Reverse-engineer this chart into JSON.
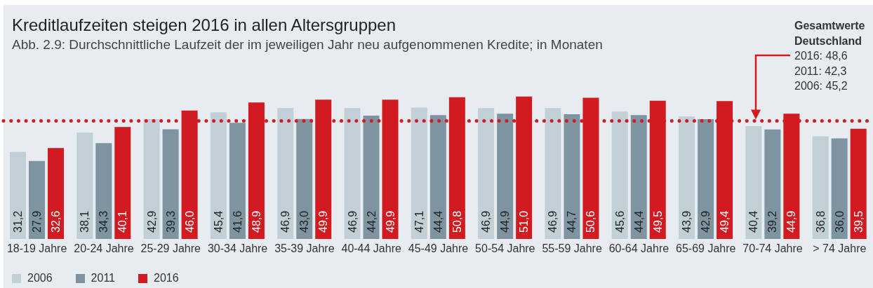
{
  "chart_data": {
    "type": "bar",
    "title": "Kreditlaufzeiten steigen 2016 in allen Altersgruppen",
    "subtitle": "Abb. 2.9: Durchschnittliche Laufzeit der im jeweiligen Jahr neu aufgenommenen Kredite; in Monaten",
    "categories": [
      "18-19 Jahre",
      "20-24 Jahre",
      "25-29 Jahre",
      "30-34 Jahre",
      "35-39 Jahre",
      "40-44 Jahre",
      "45-49 Jahre",
      "50-54 Jahre",
      "55-59 Jahre",
      "60-64 Jahre",
      "65-69 Jahre",
      "70-74 Jahre",
      "> 74 Jahre"
    ],
    "series": [
      {
        "name": "2006",
        "color": "#c1cfd6",
        "values": [
          31.2,
          38.1,
          42.9,
          45.4,
          46.9,
          46.9,
          47.1,
          46.9,
          46.9,
          45.6,
          43.9,
          40.4,
          36.8
        ],
        "value_labels": [
          "31,2",
          "38,1",
          "42,9",
          "45,4",
          "46,9",
          "46,9",
          "47,1",
          "46,9",
          "46,9",
          "45,6",
          "43,9",
          "40,4",
          "36,8"
        ]
      },
      {
        "name": "2011",
        "color": "#7e95a1",
        "values": [
          27.9,
          34.3,
          39.3,
          41.6,
          43.0,
          44.2,
          44.4,
          44.9,
          44.7,
          44.4,
          42.9,
          39.2,
          36.0
        ],
        "value_labels": [
          "27,9",
          "34,3",
          "39,3",
          "41,6",
          "43,0",
          "44,2",
          "44,4",
          "44,9",
          "44,7",
          "44,4",
          "42,9",
          "39,2",
          "36,0"
        ]
      },
      {
        "name": "2016",
        "color": "#d11b21",
        "values": [
          32.6,
          40.1,
          46.0,
          48.9,
          49.9,
          49.9,
          50.8,
          51.0,
          50.6,
          49.5,
          49.4,
          44.9,
          39.5
        ],
        "value_labels": [
          "32,6",
          "40,1",
          "46,0",
          "48,9",
          "49,9",
          "49,9",
          "50,8",
          "51,0",
          "50,6",
          "49,5",
          "49,4",
          "44,9",
          "39,5"
        ]
      }
    ],
    "legend": "bottom left",
    "ref_lines": [
      {
        "axis": "y",
        "value": 42.3,
        "color": "#d11b21",
        "line_style": "dotted"
      }
    ],
    "annotations": [
      "Gesamtwerte Deutschland",
      "2016: 48,6",
      "2011: 42,3",
      "2006: 45,2"
    ]
  }
}
